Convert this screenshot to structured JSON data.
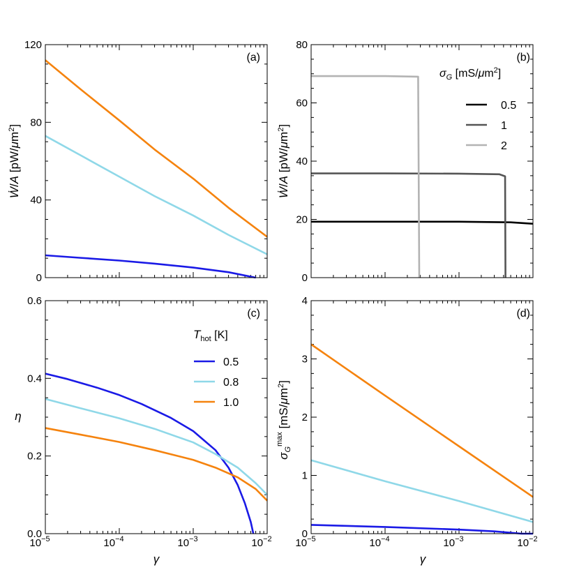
{
  "chart_data": [
    {
      "type": "line",
      "panel": "(a)",
      "xscale": "log",
      "xlim": [
        1e-05,
        0.01
      ],
      "ylim": [
        0,
        120
      ],
      "yticks": [
        "0",
        "40",
        "80",
        "120"
      ],
      "ylabel": "Ẇ/A [pW/μm²]",
      "xlabel": "",
      "series": [
        {
          "name": "0.5",
          "color": "#1a1ae6",
          "x": [
            1e-05,
            3e-05,
            0.0001,
            0.0003,
            0.001,
            0.003,
            0.007
          ],
          "y": [
            11.5,
            10.2,
            8.8,
            7.2,
            5.2,
            2.8,
            0
          ]
        },
        {
          "name": "0.8",
          "color": "#8fd8e8",
          "x": [
            1e-05,
            3e-05,
            0.0001,
            0.0003,
            0.001,
            0.003,
            0.01
          ],
          "y": [
            73,
            63,
            52,
            42,
            32,
            22,
            12
          ]
        },
        {
          "name": "1.0",
          "color": "#f5830e",
          "x": [
            1e-05,
            3e-05,
            0.0001,
            0.0003,
            0.001,
            0.003,
            0.01
          ],
          "y": [
            112,
            97,
            81,
            66,
            51,
            36,
            21
          ]
        }
      ]
    },
    {
      "type": "line",
      "panel": "(b)",
      "xscale": "log",
      "xlim": [
        1e-05,
        0.01
      ],
      "ylim": [
        0,
        80
      ],
      "yticks": [
        "0",
        "20",
        "40",
        "60",
        "80"
      ],
      "ylabel": "Ẇ/A [pW/μm²]",
      "xlabel": "",
      "legend_title": "σG [mS/μm²]",
      "series": [
        {
          "name": "0.5",
          "color": "#000000",
          "x": [
            1e-05,
            0.0001,
            0.001,
            0.005,
            0.01
          ],
          "y": [
            19.2,
            19.2,
            19.2,
            19.0,
            18.5
          ]
        },
        {
          "name": "1",
          "color": "#555555",
          "x": [
            1e-05,
            0.0001,
            0.001,
            0.0035,
            0.0042,
            0.00425
          ],
          "y": [
            35.8,
            35.8,
            35.7,
            35.5,
            34.8,
            0
          ]
        },
        {
          "name": "2",
          "color": "#b3b3b3",
          "x": [
            1e-05,
            0.0001,
            0.00028,
            0.00029
          ],
          "y": [
            69.2,
            69.2,
            69.0,
            0
          ]
        }
      ]
    },
    {
      "type": "line",
      "panel": "(c)",
      "xscale": "log",
      "xlim": [
        1e-05,
        0.01
      ],
      "ylim": [
        0,
        0.6
      ],
      "yticks": [
        "0.0",
        "0.2",
        "0.4",
        "0.6"
      ],
      "xticks": [
        "10",
        "10",
        "10",
        "10"
      ],
      "xtick_exponents": [
        "−5",
        "−4",
        "−3",
        "−2"
      ],
      "ylabel": "η",
      "xlabel": "γ",
      "legend_title": "T",
      "legend_title_sub": "hot",
      "legend_title_unit": "[K]",
      "series": [
        {
          "name": "0.5",
          "color": "#1a1ae6",
          "x": [
            1e-05,
            2e-05,
            5e-05,
            0.0001,
            0.0002,
            0.0005,
            0.001,
            0.002,
            0.003,
            0.004,
            0.005,
            0.006,
            0.0065
          ],
          "y": [
            0.412,
            0.398,
            0.376,
            0.357,
            0.334,
            0.298,
            0.264,
            0.215,
            0.17,
            0.125,
            0.078,
            0.03,
            0.0
          ]
        },
        {
          "name": "0.8",
          "color": "#8fd8e8",
          "x": [
            1e-05,
            3e-05,
            0.0001,
            0.0003,
            0.001,
            0.002,
            0.004,
            0.007,
            0.01
          ],
          "y": [
            0.347,
            0.323,
            0.297,
            0.27,
            0.235,
            0.205,
            0.17,
            0.13,
            0.1
          ]
        },
        {
          "name": "1.0",
          "color": "#f5830e",
          "x": [
            1e-05,
            3e-05,
            0.0001,
            0.0003,
            0.001,
            0.002,
            0.004,
            0.007,
            0.01
          ],
          "y": [
            0.272,
            0.255,
            0.236,
            0.215,
            0.19,
            0.17,
            0.145,
            0.115,
            0.085
          ]
        }
      ]
    },
    {
      "type": "line",
      "panel": "(d)",
      "xscale": "log",
      "xlim": [
        1e-05,
        0.01
      ],
      "ylim": [
        0,
        4
      ],
      "yticks": [
        "0",
        "1",
        "2",
        "3",
        "4"
      ],
      "xticks": [
        "10",
        "10",
        "10",
        "10"
      ],
      "xtick_exponents": [
        "−5",
        "−4",
        "−3",
        "−2"
      ],
      "ylabel": "σG max [mS/μm²]",
      "xlabel": "γ",
      "series": [
        {
          "name": "0.5",
          "color": "#1a1ae6",
          "x": [
            1e-05,
            0.0001,
            0.001,
            0.003,
            0.007,
            0.01
          ],
          "y": [
            0.15,
            0.115,
            0.07,
            0.04,
            0.0,
            0.0
          ]
        },
        {
          "name": "0.8",
          "color": "#8fd8e8",
          "x": [
            1e-05,
            0.0001,
            0.001,
            0.01
          ],
          "y": [
            1.26,
            0.9,
            0.56,
            0.2
          ]
        },
        {
          "name": "1.0",
          "color": "#f5830e",
          "x": [
            1e-05,
            0.0001,
            0.001,
            0.01
          ],
          "y": [
            3.25,
            2.37,
            1.5,
            0.63
          ]
        }
      ]
    }
  ]
}
